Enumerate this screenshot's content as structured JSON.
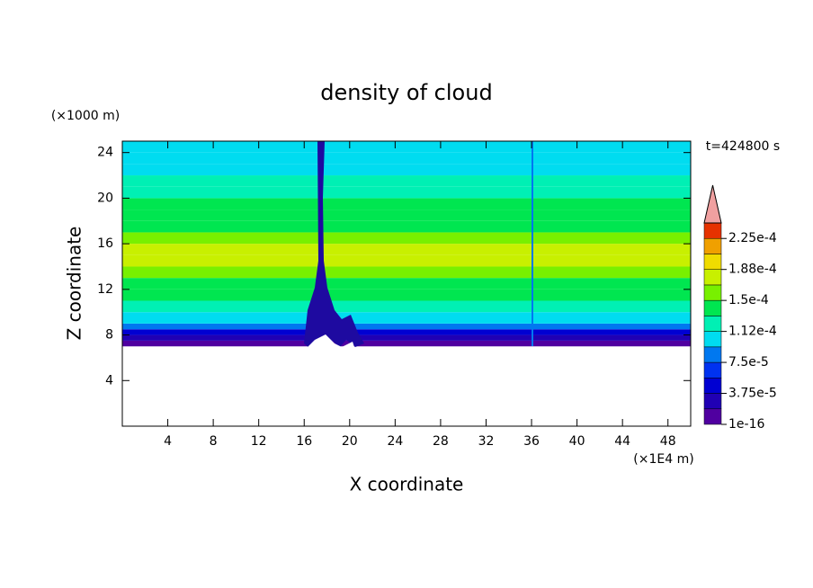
{
  "chart_data": {
    "type": "contour",
    "title": "density of cloud",
    "xlabel": "X coordinate",
    "ylabel": "Z coordinate",
    "x_unit": "(×1E4 m)",
    "y_unit": "(×1000 m)",
    "annotation": "t=424800 s",
    "xlim": [
      0,
      50
    ],
    "ylim": [
      0,
      25
    ],
    "xticks": [
      4,
      8,
      12,
      16,
      20,
      24,
      28,
      32,
      36,
      40,
      44,
      48
    ],
    "yticks": [
      4,
      8,
      12,
      16,
      20,
      24
    ],
    "z": [
      7,
      7.5,
      8,
      8.5,
      9,
      10,
      11,
      12,
      13,
      14,
      15,
      16,
      17,
      18,
      19,
      20,
      21,
      22,
      23,
      24,
      25
    ],
    "values": [
      1e-05,
      3e-05,
      5e-05,
      8e-05,
      0.0001,
      0.00012,
      0.000135,
      0.000145,
      0.00016,
      0.00017,
      0.00017,
      0.00016,
      0.000145,
      0.00014,
      0.000135,
      0.00013,
      0.00012,
      0.00011,
      0.0001,
      9.5e-05,
      9e-05
    ],
    "colorbar": {
      "levels": [
        1e-16,
        1.875e-05,
        3.75e-05,
        5.625e-05,
        7.5e-05,
        9.375e-05,
        0.0001125,
        0.00013125,
        0.00015,
        0.00016875,
        0.0001875,
        0.00020625,
        0.000225,
        0.00024375
      ],
      "colors": [
        "#5000a0",
        "#2000b4",
        "#0000d2",
        "#0032f0",
        "#0078f0",
        "#00dcf0",
        "#00f0b4",
        "#00e650",
        "#78f000",
        "#c8f000",
        "#f0dc00",
        "#f0a000",
        "#e63200"
      ],
      "over_color": "#f0a0a0",
      "ticks": [
        {
          "value": 1e-16,
          "label": "1e-16"
        },
        {
          "value": 3.75e-05,
          "label": "3.75e-5"
        },
        {
          "value": 7.5e-05,
          "label": "7.5e-5"
        },
        {
          "value": 0.0001125,
          "label": "1.12e-4"
        },
        {
          "value": 0.00015,
          "label": "1.5e-4"
        },
        {
          "value": 0.0001875,
          "label": "1.88e-4"
        },
        {
          "value": 0.000225,
          "label": "2.25e-4"
        }
      ]
    }
  }
}
